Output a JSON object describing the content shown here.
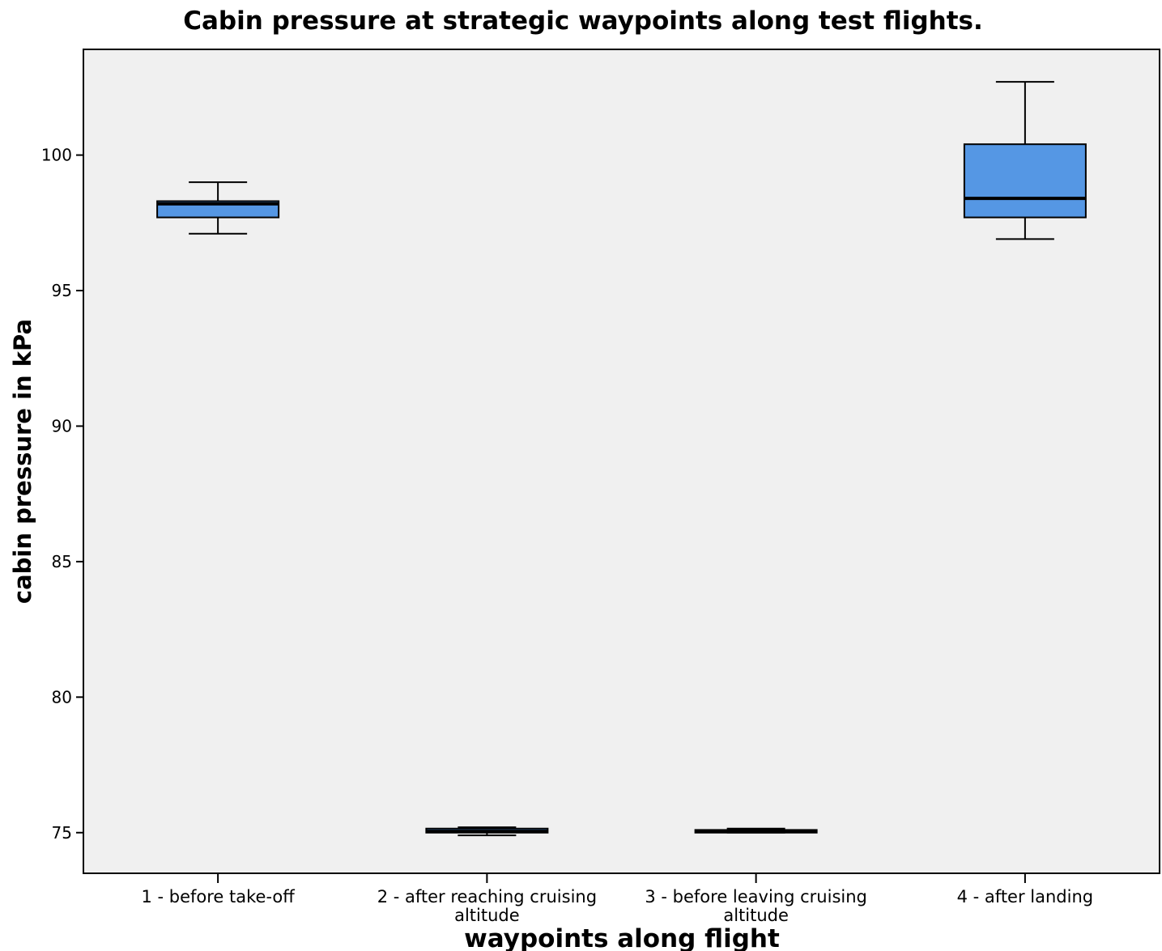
{
  "chart_data": {
    "type": "box",
    "title": "Cabin pressure at strategic waypoints along test flights.",
    "xlabel": "waypoints along flight",
    "ylabel": "cabin pressure in kPa",
    "ylim": [
      73.5,
      103.9
    ],
    "yticks": [
      75,
      80,
      85,
      90,
      95,
      100
    ],
    "grid": false,
    "legend": "none",
    "colors": {
      "plot_background": "#f0f0f0",
      "box_fill": "#5597e4",
      "line": "#000000"
    },
    "categories": [
      {
        "lines": [
          "1 - before take-off"
        ]
      },
      {
        "lines": [
          "2 - after reaching cruising",
          "altitude"
        ]
      },
      {
        "lines": [
          "3 - before leaving cruising",
          "altitude"
        ]
      },
      {
        "lines": [
          "4 - after landing"
        ]
      }
    ],
    "boxes": [
      {
        "min": 97.1,
        "q1": 97.7,
        "median": 98.2,
        "q3": 98.3,
        "max": 99.0
      },
      {
        "min": 74.9,
        "q1": 75.0,
        "median": 75.05,
        "q3": 75.15,
        "max": 75.2
      },
      {
        "min": 75.0,
        "q1": 75.0,
        "median": 75.05,
        "q3": 75.1,
        "max": 75.15
      },
      {
        "min": 96.9,
        "q1": 97.7,
        "median": 98.4,
        "q3": 100.4,
        "max": 102.7
      }
    ]
  }
}
